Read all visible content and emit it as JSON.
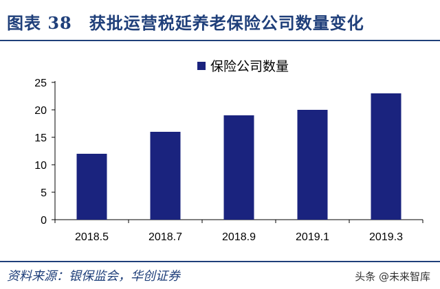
{
  "title": "图表 38　获批运营税延养老保险公司数量变化",
  "source": "资料来源：银保监会，华创证券",
  "watermark": "头条 @未来智库",
  "colors": {
    "bar": "#1a237e",
    "title": "#1f3f7a"
  },
  "chart_data": {
    "type": "bar",
    "categories": [
      "2018.5",
      "2018.7",
      "2018.9",
      "2019.1",
      "2019.3"
    ],
    "series": [
      {
        "name": "保险公司数量",
        "values": [
          12,
          16,
          19,
          20,
          23
        ]
      }
    ],
    "ylim": [
      0,
      25
    ],
    "yticks": [
      0,
      5,
      10,
      15,
      20,
      25
    ],
    "legend_position": "top-center",
    "grid": false
  }
}
